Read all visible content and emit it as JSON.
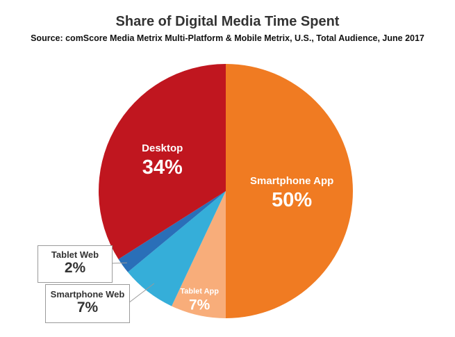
{
  "chart_data": {
    "type": "pie",
    "title": "Share of Digital Media Time Spent",
    "subtitle": "Source: comScore Media Metrix Multi-Platform & Mobile Metrix, U.S., Total Audience, June 2017",
    "slices": [
      {
        "label": "Smartphone App",
        "value": 50,
        "display": "50%",
        "color": "#f07b22",
        "text_color": "#ffffff"
      },
      {
        "label": "Tablet App",
        "value": 7,
        "display": "7%",
        "color": "#f8ad7a",
        "text_color": "#ffffff"
      },
      {
        "label": "Smartphone Web",
        "value": 7,
        "display": "7%",
        "color": "#35aed9",
        "text_color": "#333333"
      },
      {
        "label": "Tablet Web",
        "value": 2,
        "display": "2%",
        "color": "#2a6fb8",
        "text_color": "#333333"
      },
      {
        "label": "Desktop",
        "value": 34,
        "display": "34%",
        "color": "#c0161f",
        "text_color": "#ffffff"
      }
    ]
  }
}
